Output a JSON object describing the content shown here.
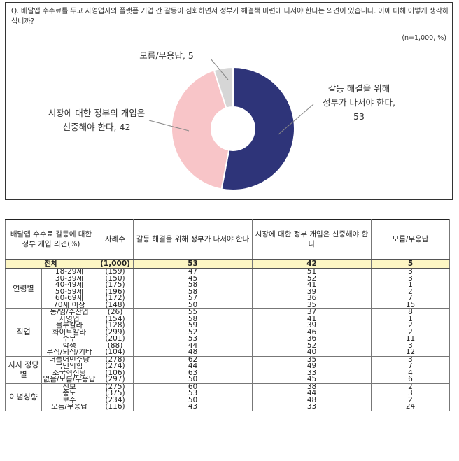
{
  "question": "Q. 배달앱 수수료를 두고 자영업자와 플랫폼 기업 간 갈등이 심화하면서 정부가 해결책 마련에 나서야 한다는 의견이 있습니다. 이에 대해 어떻게 생각하십니까?",
  "sample_note": "(n=1,000, %)",
  "chart_data": {
    "type": "pie",
    "donut": true,
    "slices": [
      {
        "label": "갈등 해결을 위해 정부가 나서야 한다",
        "value": 53,
        "color": "#2e3479",
        "label_lines": [
          "갈등 해결을 위해",
          "정부가 나서야 한다,",
          "53"
        ]
      },
      {
        "label": "시장에 대한 정부의 개입은 신중해야 한다",
        "value": 42,
        "color": "#f8c5c8",
        "label_lines": [
          "시장에 대한 정부의 개입은",
          "신중해야 한다, 42"
        ]
      },
      {
        "label": "모름/무응답",
        "value": 5,
        "color": "#d6d6d6",
        "label_lines": [
          "모름/무응답, 5"
        ]
      }
    ]
  },
  "table": {
    "headers": {
      "group": "배달앱 수수료 갈등에 대한 정부 개입 의견(%)",
      "n": "사례수",
      "col1": "갈등 해결을 위해 정부가 나서야 한다",
      "col2": "시장에 대한 정부 개입은 신중해야 한다",
      "col3": "모름/무응답"
    },
    "total": {
      "label": "전체",
      "n": "(1,000)",
      "v1": "53",
      "v2": "42",
      "v3": "5"
    },
    "groups": [
      {
        "name": "연령별",
        "rows": [
          {
            "label": "18-29세",
            "n": "(159)",
            "v1": "47",
            "v2": "51",
            "v3": "3"
          },
          {
            "label": "30-39세",
            "n": "(150)",
            "v1": "45",
            "v2": "52",
            "v3": "3"
          },
          {
            "label": "40-49세",
            "n": "(175)",
            "v1": "58",
            "v2": "41",
            "v3": "1"
          },
          {
            "label": "50-59세",
            "n": "(196)",
            "v1": "58",
            "v2": "39",
            "v3": "2"
          },
          {
            "label": "60-69세",
            "n": "(172)",
            "v1": "57",
            "v2": "36",
            "v3": "7"
          },
          {
            "label": "70세 이상",
            "n": "(148)",
            "v1": "50",
            "v2": "35",
            "v3": "15"
          }
        ]
      },
      {
        "name": "직업",
        "rows": [
          {
            "label": "농/임/수산업",
            "n": "(26)",
            "v1": "55",
            "v2": "37",
            "v3": "8"
          },
          {
            "label": "자영업",
            "n": "(154)",
            "v1": "58",
            "v2": "41",
            "v3": "1"
          },
          {
            "label": "블루칼라",
            "n": "(128)",
            "v1": "59",
            "v2": "39",
            "v3": "2"
          },
          {
            "label": "화이트칼라",
            "n": "(299)",
            "v1": "52",
            "v2": "46",
            "v3": "2"
          },
          {
            "label": "주부",
            "n": "(201)",
            "v1": "53",
            "v2": "36",
            "v3": "11"
          },
          {
            "label": "학생",
            "n": "(88)",
            "v1": "44",
            "v2": "52",
            "v3": "3"
          },
          {
            "label": "무직/퇴직/기타",
            "n": "(104)",
            "v1": "48",
            "v2": "40",
            "v3": "12"
          }
        ]
      },
      {
        "name": "지지 정당별",
        "rows": [
          {
            "label": "더불어민주당",
            "n": "(278)",
            "v1": "62",
            "v2": "35",
            "v3": "3"
          },
          {
            "label": "국민의힘",
            "n": "(274)",
            "v1": "44",
            "v2": "49",
            "v3": "7"
          },
          {
            "label": "조국혁신당",
            "n": "(106)",
            "v1": "63",
            "v2": "33",
            "v3": "4"
          },
          {
            "label": "없음/모름/무응답",
            "n": "(297)",
            "v1": "50",
            "v2": "45",
            "v3": "6"
          }
        ]
      },
      {
        "name": "이념성향",
        "rows": [
          {
            "label": "진보",
            "n": "(275)",
            "v1": "60",
            "v2": "38",
            "v3": "2"
          },
          {
            "label": "중도",
            "n": "(375)",
            "v1": "53",
            "v2": "44",
            "v3": "3"
          },
          {
            "label": "보수",
            "n": "(234)",
            "v1": "50",
            "v2": "48",
            "v3": "2"
          },
          {
            "label": "모름/무응답",
            "n": "(116)",
            "v1": "43",
            "v2": "33",
            "v3": "24"
          }
        ]
      }
    ]
  }
}
